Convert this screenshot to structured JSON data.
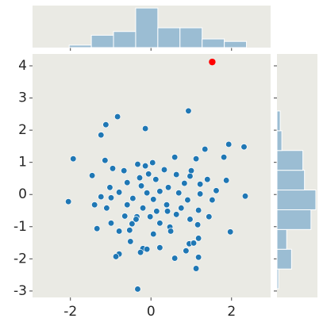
{
  "chart_data": [
    {
      "type": "scatter",
      "color": "#1f77b4",
      "x": [
        0.93,
        -0.83,
        -1.12,
        -0.14,
        -1.24,
        1.93,
        2.31,
        1.34,
        -1.93,
        -1.14,
        0.59,
        1.12,
        1.81,
        0.04,
        -0.33,
        -0.14,
        -0.95,
        -0.67,
        0.33,
        1.0,
        -1.46,
        -0.06,
        0.63,
        0.97,
        1.4,
        1.87,
        -0.28,
        0.12,
        -0.59,
        0.83,
        1.22,
        1.62,
        -1.02,
        -0.24,
        0.43,
        -0.79,
        -0.1,
        0.22,
        0.69,
        1.22,
        2.34,
        -2.05,
        -1.24,
        -0.99,
        -0.45,
        0.06,
        0.91,
        1.52,
        -1.4,
        -0.59,
        0.39,
        -0.2,
        0.75,
        1.18,
        -1.1,
        0.14,
        0.41,
        -0.65,
        -0.35,
        -0.37,
        -0.02,
        0.63,
        1.44,
        0.97,
        -0.99,
        -1.34,
        -0.47,
        0.22,
        0.47,
        1.16,
        -0.79,
        0.49,
        -0.53,
        0.06,
        1.97,
        1.18,
        -0.51,
        0.95,
        1.06,
        -0.2,
        0.22,
        -0.1,
        0.59,
        -0.79,
        -0.87,
        -0.26,
        0.87,
        1.18,
        1.12,
        -0.33
      ],
      "y": [
        2.6,
        2.42,
        2.17,
        2.05,
        1.85,
        1.56,
        1.48,
        1.41,
        1.11,
        1.06,
        1.16,
        1.11,
        1.16,
        0.99,
        0.94,
        0.89,
        0.81,
        0.74,
        0.77,
        0.74,
        0.59,
        0.64,
        0.62,
        0.57,
        0.47,
        0.44,
        0.52,
        0.47,
        0.37,
        0.35,
        0.32,
        0.12,
        0.22,
        0.27,
        0.22,
        0.07,
        0.05,
        0.1,
        0.05,
        0.02,
        -0.05,
        -0.22,
        -0.07,
        -0.1,
        -0.12,
        -0.15,
        -0.17,
        -0.17,
        -0.32,
        -0.32,
        -0.32,
        -0.42,
        -0.42,
        -0.49,
        -0.42,
        -0.52,
        -0.52,
        -0.67,
        -0.69,
        -0.77,
        -0.69,
        -0.62,
        -0.69,
        -0.77,
        -0.89,
        -1.06,
        -0.91,
        -0.89,
        -1.01,
        -0.94,
        -1.14,
        -1.14,
        -1.11,
        -1.23,
        -1.16,
        -1.36,
        -1.46,
        -1.53,
        -1.51,
        -1.68,
        -1.65,
        -1.7,
        -1.98,
        -1.85,
        -1.93,
        -1.8,
        -1.75,
        -1.95,
        -2.3,
        -2.94
      ],
      "highlight": {
        "x": 1.52,
        "y": 4.12,
        "color": "#ff0000"
      },
      "xlim": [
        -2.94,
        2.97
      ],
      "ylim": [
        -3.2,
        4.37
      ],
      "xticks": [
        -2,
        0,
        2
      ],
      "yticks": [
        -3,
        -2,
        -1,
        0,
        1,
        2,
        3,
        4
      ]
    },
    {
      "type": "histogram",
      "orientation": "vertical",
      "color": "#9bbdd3",
      "bins": [
        -2.03,
        -1.48,
        -0.93,
        -0.38,
        0.17,
        0.72,
        1.27,
        1.82,
        2.37
      ],
      "counts": [
        2,
        10,
        13,
        32,
        16,
        16,
        7,
        5
      ],
      "ylim": [
        0,
        34
      ]
    },
    {
      "type": "histogram",
      "orientation": "horizontal",
      "color": "#9bbdd3",
      "bins": [
        -2.93,
        -2.316,
        -1.702,
        -1.088,
        -0.474,
        0.14,
        0.754,
        1.368,
        1.982,
        2.596
      ],
      "counts": [
        1,
        9,
        6,
        21,
        24,
        17,
        16,
        3,
        2
      ],
      "xlim": [
        0,
        25
      ]
    }
  ]
}
